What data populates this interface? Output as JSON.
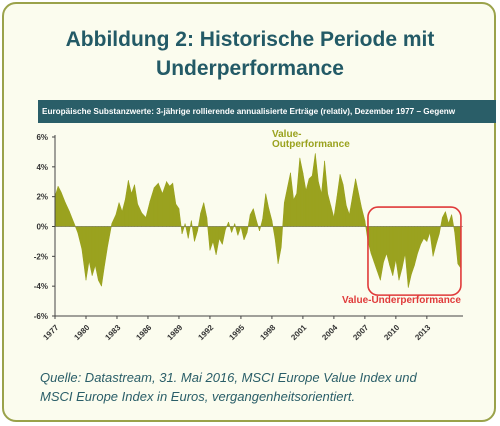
{
  "title_line1": "Abbildung 2: Historische Periode mit",
  "title_line2": "Underperformance",
  "banner": "Europäische Substanzwerte: 3-jährige rollierende annualisierte Erträge (relativ), Dezember 1977 – Gegenw",
  "caption_line1": "Quelle: Datastream, 31. Mai 2016, MSCI Europe Value Index und",
  "caption_line2": "MSCI Europe Index in Euros, vergangenheitsorientiert.",
  "colors": {
    "fill": "#9aa21f",
    "title": "#235a66",
    "highlight": "#e03a3a",
    "banner": "#2a5e68"
  },
  "chart_data": {
    "type": "area",
    "ylim": [
      -6,
      6
    ],
    "xlim": [
      1977,
      2016.5
    ],
    "y_ticks": [
      "-6%",
      "-4%",
      "-2%",
      "0%",
      "2%",
      "4%",
      "6%"
    ],
    "y_tick_values": [
      -6,
      -4,
      -2,
      0,
      2,
      4,
      6
    ],
    "x_ticks": [
      "1977",
      "1980",
      "1983",
      "1986",
      "1989",
      "1992",
      "1995",
      "1998",
      "2001",
      "2004",
      "2007",
      "2010",
      "2013"
    ],
    "x_tick_values": [
      1977,
      1980,
      1983,
      1986,
      1989,
      1992,
      1995,
      1998,
      2001,
      2004,
      2007,
      2010,
      2013
    ],
    "annotations": [
      {
        "text_line1": "Value-",
        "text_line2": "Outperformance",
        "color": "#9aa21f"
      },
      {
        "text": "Value-Underperformance",
        "color": "#e03a3a",
        "box_x": [
          2007.3,
          2016.3
        ],
        "box_y": [
          -4.6,
          1.3
        ]
      }
    ],
    "x": [
      1977.0,
      1977.3,
      1977.6,
      1978.0,
      1978.4,
      1978.8,
      1979.2,
      1979.6,
      1980.0,
      1980.3,
      1980.6,
      1980.9,
      1981.2,
      1981.5,
      1981.8,
      1982.1,
      1982.5,
      1982.9,
      1983.2,
      1983.5,
      1983.8,
      1984.1,
      1984.4,
      1984.7,
      1985.0,
      1985.4,
      1985.8,
      1986.2,
      1986.6,
      1987.0,
      1987.4,
      1987.8,
      1988.1,
      1988.4,
      1988.7,
      1989.0,
      1989.3,
      1989.6,
      1989.9,
      1990.2,
      1990.5,
      1990.8,
      1991.1,
      1991.4,
      1991.7,
      1992.0,
      1992.3,
      1992.6,
      1992.9,
      1993.2,
      1993.5,
      1993.8,
      1994.1,
      1994.4,
      1994.7,
      1995.0,
      1995.3,
      1995.6,
      1995.9,
      1996.2,
      1996.5,
      1996.8,
      1997.1,
      1997.4,
      1997.7,
      1998.0,
      1998.3,
      1998.6,
      1998.9,
      1999.2,
      1999.5,
      1999.8,
      2000.1,
      2000.4,
      2000.7,
      2001.0,
      2001.3,
      2001.6,
      2001.9,
      2002.2,
      2002.5,
      2002.8,
      2003.1,
      2003.4,
      2003.7,
      2004.0,
      2004.3,
      2004.6,
      2004.9,
      2005.2,
      2005.5,
      2005.8,
      2006.1,
      2006.4,
      2006.7,
      2007.0,
      2007.3,
      2007.6,
      2007.9,
      2008.2,
      2008.5,
      2008.8,
      2009.1,
      2009.4,
      2009.7,
      2010.0,
      2010.3,
      2010.6,
      2010.9,
      2011.2,
      2011.5,
      2011.8,
      2012.1,
      2012.4,
      2012.7,
      2013.0,
      2013.3,
      2013.6,
      2013.9,
      2014.2,
      2014.5,
      2014.8,
      2015.1,
      2015.4,
      2015.7,
      2016.0,
      2016.3
    ],
    "values": [
      2.0,
      2.7,
      2.3,
      1.6,
      1.0,
      0.3,
      -0.4,
      -1.5,
      -3.6,
      -2.3,
      -3.3,
      -2.6,
      -3.6,
      -4.0,
      -2.6,
      -1.3,
      0.2,
      0.8,
      1.6,
      1.0,
      1.8,
      3.1,
      2.2,
      2.8,
      1.5,
      0.9,
      0.6,
      1.7,
      2.6,
      2.9,
      2.2,
      3.0,
      2.7,
      2.9,
      1.5,
      1.2,
      -0.5,
      0.2,
      -0.8,
      0.4,
      -1.0,
      -0.3,
      0.9,
      1.6,
      0.6,
      -1.6,
      -1.0,
      -1.9,
      -0.8,
      -1.2,
      -0.2,
      0.3,
      -0.4,
      0.2,
      -0.6,
      0.0,
      -0.9,
      -0.4,
      0.8,
      1.2,
      0.4,
      -0.3,
      0.5,
      2.2,
      1.2,
      0.4,
      -0.8,
      -2.5,
      -1.4,
      1.6,
      2.6,
      3.6,
      1.8,
      2.2,
      4.6,
      3.6,
      2.4,
      3.2,
      3.4,
      4.9,
      3.0,
      2.2,
      4.4,
      2.2,
      1.4,
      0.6,
      2.0,
      3.5,
      2.8,
      1.4,
      0.8,
      2.0,
      3.2,
      2.2,
      1.2,
      0.4,
      -1.0,
      -1.8,
      -2.4,
      -3.0,
      -3.6,
      -2.4,
      -1.8,
      -2.6,
      -3.3,
      -2.2,
      -3.6,
      -2.8,
      -1.8,
      -4.1,
      -3.2,
      -2.6,
      -1.8,
      -1.2,
      -0.8,
      -1.0,
      -0.4,
      -2.0,
      -1.2,
      -0.5,
      0.6,
      1.0,
      0.2,
      0.8,
      -0.4,
      -2.5,
      -2.8
    ]
  }
}
